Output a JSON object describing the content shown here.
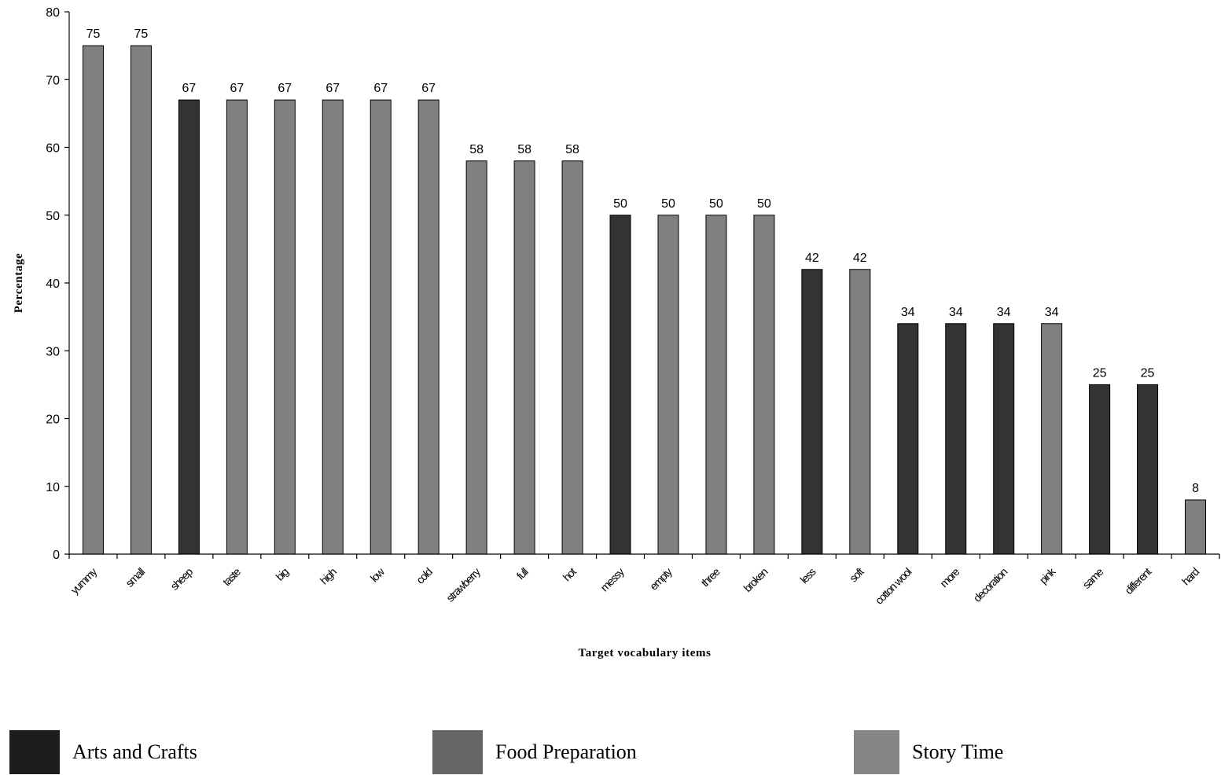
{
  "chart_data": {
    "type": "bar",
    "xlabel": "Target vocabulary items",
    "ylabel": "Percentage",
    "ylim": [
      0,
      80
    ],
    "yticks": [
      0,
      10,
      20,
      30,
      40,
      50,
      60,
      70,
      80
    ],
    "grid": false,
    "legend_position": "bottom",
    "categories": [
      "yummy",
      "small",
      "sheep",
      "taste",
      "big",
      "high",
      "low",
      "cold",
      "strawberry",
      "full",
      "hot",
      "messy",
      "empty",
      "three",
      "broken",
      "less",
      "soft",
      "cotton wool",
      "more",
      "decoration",
      "pink",
      "same",
      "different",
      "hard"
    ],
    "values": [
      75,
      75,
      67,
      67,
      67,
      67,
      67,
      67,
      58,
      58,
      58,
      50,
      50,
      50,
      50,
      42,
      42,
      34,
      34,
      34,
      34,
      25,
      25,
      8
    ],
    "data_labels": [
      "75",
      "75",
      "67",
      "67",
      "67",
      "67",
      "67",
      "67",
      "58",
      "58",
      "58",
      "50",
      "50",
      "50",
      "50",
      "42",
      "42",
      "34",
      "34",
      "34",
      "34",
      "25",
      "25",
      "8"
    ],
    "bar_series": [
      1,
      1,
      0,
      1,
      1,
      1,
      1,
      1,
      1,
      1,
      1,
      0,
      1,
      1,
      1,
      0,
      1,
      0,
      0,
      0,
      1,
      0,
      0,
      1
    ],
    "series": [
      {
        "name": "Arts and Crafts",
        "chart_color": "#333333",
        "legend_color": "#1c1c1c"
      },
      {
        "name": "Food Preparation",
        "chart_color": "#808080",
        "legend_color": "#666666"
      },
      {
        "name": "Story Time",
        "chart_color": "#808080",
        "legend_color": "#858585"
      }
    ]
  }
}
